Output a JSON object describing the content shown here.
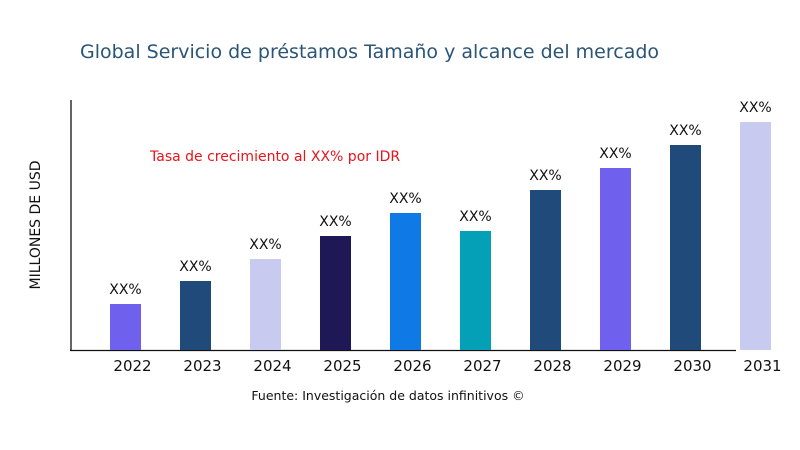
{
  "chart_data": {
    "type": "bar",
    "title": "Global Servicio de préstamos Tamaño y alcance del mercado",
    "xlabel": "",
    "ylabel": "MILLONES DE USD",
    "categories": [
      "2022",
      "2023",
      "2024",
      "2025",
      "2026",
      "2027",
      "2028",
      "2029",
      "2030",
      "2031"
    ],
    "values": [
      46,
      69,
      91,
      114,
      137,
      119,
      160,
      182,
      205,
      228
    ],
    "data_labels": [
      "XX%",
      "XX%",
      "XX%",
      "XX%",
      "XX%",
      "XX%",
      "XX%",
      "XX%",
      "XX%",
      "XX%"
    ],
    "bar_colors": [
      "#7060ee",
      "#1f4a7a",
      "#c8cbef",
      "#1e1856",
      "#0f7ae5",
      "#03a0b8",
      "#1f4a7a",
      "#7060ee",
      "#1f4a7a",
      "#c8cbef"
    ],
    "ylim": [
      0,
      250
    ],
    "grid": false,
    "annotation": "Tasa de crecimiento al XX% por IDR",
    "annotation_color": "#e8141c",
    "source": "Fuente: Investigación de datos infinitivos ©"
  }
}
